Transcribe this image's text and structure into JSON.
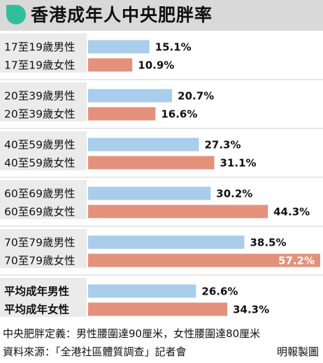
{
  "title": "香港成年人中央肥胖率",
  "colors": {
    "male": "#a9cdea",
    "female": "#e4917c",
    "label_bg": "#ebebeb",
    "header_bg": "#d9d9d9",
    "accent": "#2fbf9a"
  },
  "icons": {
    "header": "leaf-icon"
  },
  "chart_data": {
    "type": "bar",
    "orientation": "horizontal",
    "unit": "%",
    "xlim": [
      0,
      57.2
    ],
    "groups": [
      {
        "rows": [
          {
            "label": "17至19歲男性",
            "value": 15.1,
            "display": "15.1%",
            "sex": "male"
          },
          {
            "label": "17至19歲女性",
            "value": 10.9,
            "display": "10.9%",
            "sex": "female"
          }
        ]
      },
      {
        "rows": [
          {
            "label": "20至39歲男性",
            "value": 20.7,
            "display": "20.7%",
            "sex": "male"
          },
          {
            "label": "20至39歲女性",
            "value": 16.6,
            "display": "16.6%",
            "sex": "female"
          }
        ]
      },
      {
        "rows": [
          {
            "label": "40至59歲男性",
            "value": 27.3,
            "display": "27.3%",
            "sex": "male"
          },
          {
            "label": "40至59歲女性",
            "value": 31.1,
            "display": "31.1%",
            "sex": "female"
          }
        ]
      },
      {
        "rows": [
          {
            "label": "60至69歲男性",
            "value": 30.2,
            "display": "30.2%",
            "sex": "male"
          },
          {
            "label": "60至69歲女性",
            "value": 44.3,
            "display": "44.3%",
            "sex": "female"
          }
        ]
      },
      {
        "rows": [
          {
            "label": "70至79歲男性",
            "value": 38.5,
            "display": "38.5%",
            "sex": "male"
          },
          {
            "label": "70至79歲女性",
            "value": 57.2,
            "display": "57.2%",
            "sex": "female",
            "label_inside": true
          }
        ]
      },
      {
        "rows": [
          {
            "label": "平均成年男性",
            "value": 26.6,
            "display": "26.6%",
            "sex": "male",
            "bold": true
          },
          {
            "label": "平均成年女性",
            "value": 34.3,
            "display": "34.3%",
            "sex": "female",
            "bold": true
          }
        ]
      }
    ]
  },
  "footer": {
    "definition": "中央肥胖定義：男性腰圍達90厘米，女性腰圍達80厘米",
    "source": "資料來源：「全港社區體質調查」記者會",
    "credit": "明報製圖"
  }
}
